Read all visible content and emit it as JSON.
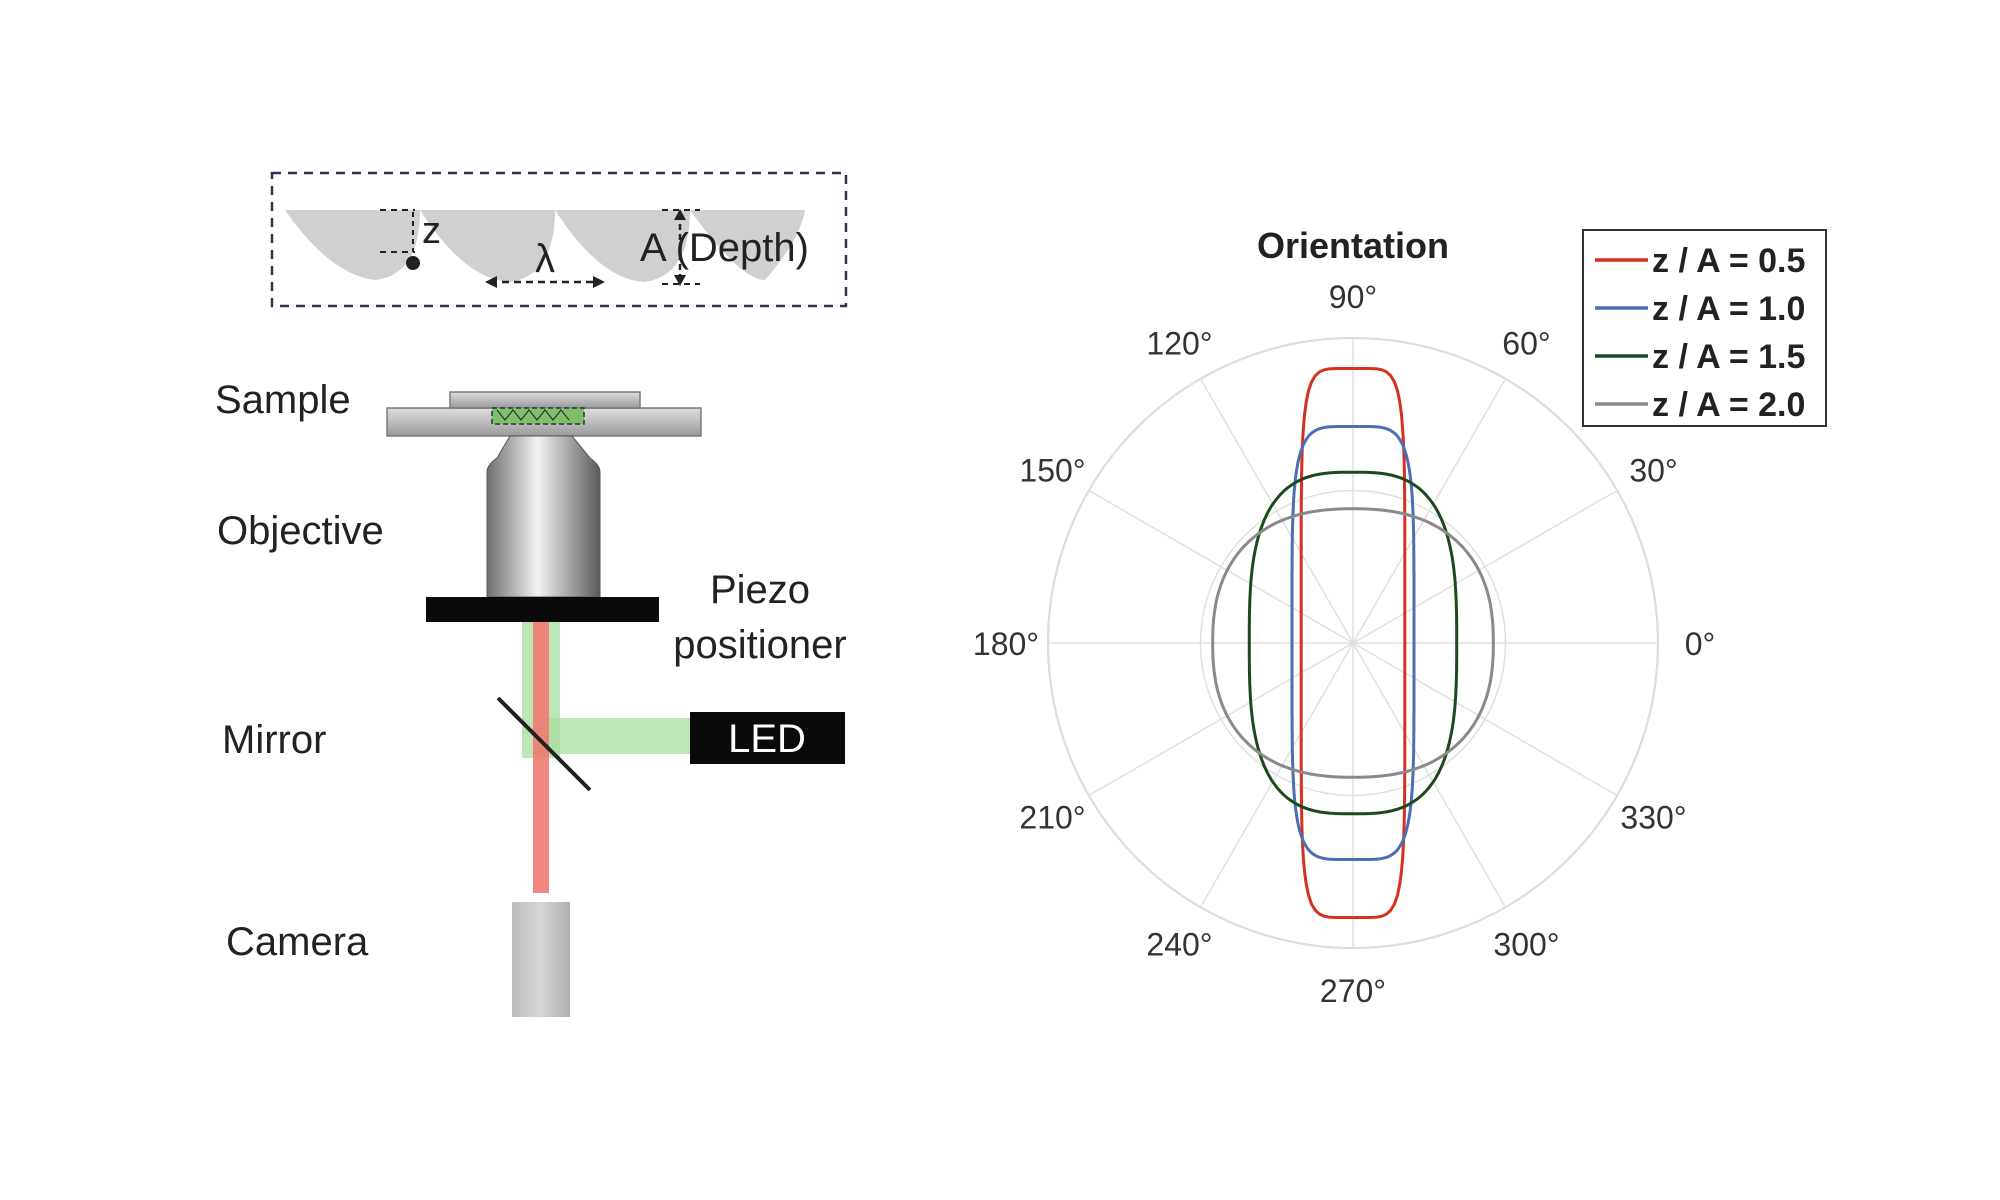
{
  "inset": {
    "z_label": "z",
    "lambda_label": "λ",
    "depth_label": "A (Depth)"
  },
  "setup": {
    "sample_label": "Sample",
    "objective_label": "Objective",
    "piezo_label_line1": "Piezo",
    "piezo_label_line2": "positioner",
    "mirror_label": "Mirror",
    "led_label": "LED",
    "camera_label": "Camera"
  },
  "colors": {
    "red": "#d7301f",
    "blue": "#4a6fb5",
    "green": "#1d4a1d",
    "gray": "#8a8a8a",
    "beam_red": "#f07a70",
    "beam_green": "#a8dca0"
  },
  "chart_data": {
    "type": "polar-line",
    "title": "Orientation",
    "angle_ticks": [
      "0°",
      "30°",
      "60°",
      "90°",
      "120°",
      "150°",
      "180°",
      "210°",
      "240°",
      "270°",
      "300°",
      "330°"
    ],
    "radial_rings": [
      0.5,
      1.0
    ],
    "legend_position": "top-right",
    "series": [
      {
        "name": "z / A = 0.5",
        "color": "#d7301f",
        "a": 0.17,
        "b": 0.9,
        "p": 6
      },
      {
        "name": "z / A = 1.0",
        "color": "#4a6fb5",
        "a": 0.2,
        "b": 0.71,
        "p": 5
      },
      {
        "name": "z / A = 1.5",
        "color": "#1d4a1d",
        "a": 0.34,
        "b": 0.56,
        "p": 3
      },
      {
        "name": "z / A = 2.0",
        "color": "#8a8a8a",
        "a": 0.46,
        "b": 0.44,
        "p": 2.4
      }
    ]
  }
}
